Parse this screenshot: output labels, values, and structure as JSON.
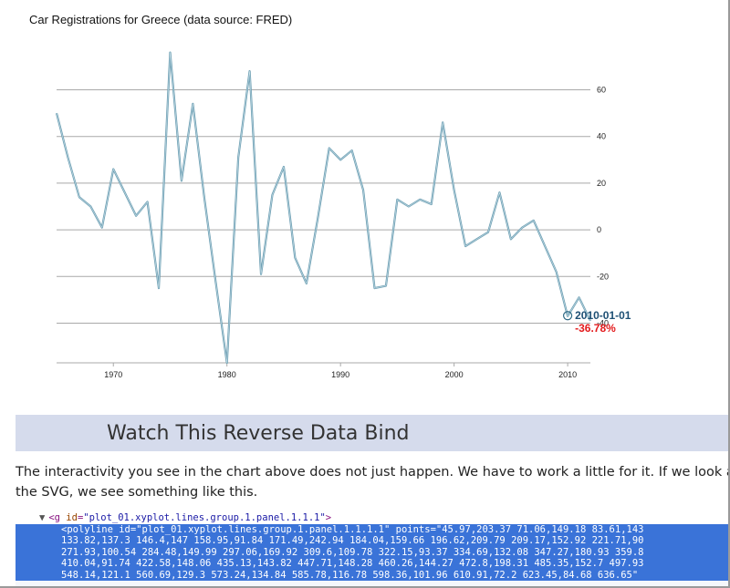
{
  "chart_data": {
    "type": "line",
    "title": "Car Registrations for Greece (data source: FRED)",
    "xlabel": "",
    "ylabel": "",
    "xlim": [
      1965,
      2012
    ],
    "ylim": [
      -57,
      77
    ],
    "x_ticks": [
      "1970",
      "1980",
      "1990",
      "2000",
      "2010"
    ],
    "y_ticks": [
      "60",
      "40",
      "20",
      "0",
      "-20",
      "-40"
    ],
    "y_axis_position": "right",
    "grid": true,
    "series": [
      {
        "x": [
          1965,
          1966,
          1967,
          1968,
          1969,
          1970,
          1971,
          1972,
          1973,
          1974,
          1975,
          1976,
          1977,
          1978,
          1979,
          1980,
          1981,
          1982,
          1983,
          1984,
          1985,
          1986,
          1987,
          1988,
          1989,
          1990,
          1991,
          1992,
          1993,
          1994,
          1995,
          1996,
          1997,
          1998,
          1999,
          2000,
          2001,
          2002,
          2003,
          2004,
          2005,
          2006,
          2007,
          2008,
          2009,
          2010,
          2011,
          2012
        ],
        "values": [
          50,
          31,
          14,
          10,
          1,
          26,
          16,
          6,
          12,
          -25,
          76,
          21,
          54,
          14,
          -22,
          -57,
          31,
          68,
          -19,
          15,
          27,
          -12,
          -23,
          5,
          35,
          30,
          34,
          17,
          -25,
          -24,
          13,
          10,
          13,
          11,
          46,
          17,
          -7,
          -4,
          -1,
          16,
          -4,
          1,
          4,
          -7,
          -18,
          -37,
          -29,
          -39
        ]
      }
    ],
    "hover": {
      "date": "2010-01-01",
      "value": "-36.78%",
      "x": 2010,
      "y": -36.78
    },
    "colors": {
      "line": "#6fa0b4",
      "hover_date": "#1d4f74",
      "hover_value": "#e31a1c"
    }
  },
  "banner": {
    "title": "Watch This Reverse Data Bind"
  },
  "body": {
    "line1": "The interactivity you see in the chart above does not just happen. We have to work a little for it. If we look at o",
    "line2": "the SVG, we see something like this."
  },
  "code": {
    "parent_tag_open": "<g ",
    "parent_attr_name": "id",
    "parent_attr_val": "\"plot_01.xyplot.lines.group.1.panel.1.1.1\"",
    "parent_tag_close": ">",
    "lines": [
      "<polyline id=\"plot_01.xyplot.lines.group.1.panel.1.1.1.1\" points=\"45.97,203.37 71.06,149.18 83.61,143",
      "133.82,137.3 146.4,147 158.95,91.84 171.49,242.94 184.04,159.66 196.62,209.79 209.17,152.92 221.71,90",
      "271.93,100.54 284.48,149.99 297.06,169.92 309.6,109.78 322.15,93.37 334.69,132.08 347.27,180.93 359.8",
      "410.04,91.74 422.58,148.06 435.13,143.82 447.71,148.28 460.26,144.27 472.8,198.31 485.35,152.7 497.93",
      "548.14,121.1 560.69,129.3 573.24,134.84 585.78,116.78 598.36,101.96 610.91,72.2 623.45,84.68 636.65\""
    ]
  }
}
